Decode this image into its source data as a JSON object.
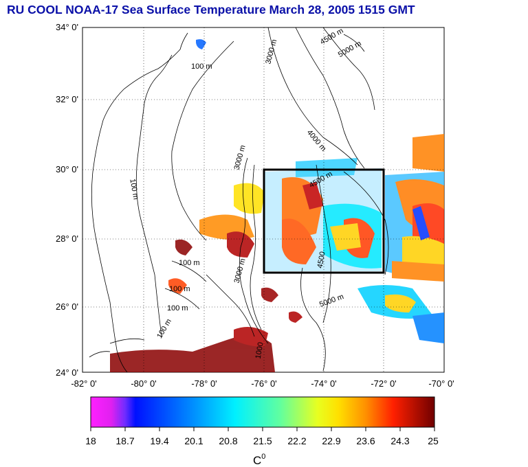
{
  "title": "RU COOL  NOAA-17 Sea Surface Temperature March 28, 2005 1515 GMT",
  "axes": {
    "lat_ticks": [
      "34° 0'",
      "32° 0'",
      "30° 0'",
      "28° 0'",
      "26° 0'",
      "24° 0'"
    ],
    "lon_ticks": [
      "-82° 0'",
      "-80° 0'",
      "-78° 0'",
      "-76° 0'",
      "-74° 0'",
      "-72° 0'",
      "-70° 0'"
    ]
  },
  "contour_labels": [
    "100 m",
    "100 m",
    "100 m",
    "100 m",
    "100 m",
    "100 m",
    "3000 m",
    "3000 m",
    "3000 m",
    "4500 m",
    "4500 m",
    "5000 m",
    "4000 m",
    "4500",
    "5000 m",
    "1000"
  ],
  "study_box": {
    "lon_min": -76,
    "lon_max": -72,
    "lat_min": 27,
    "lat_max": 30
  },
  "colorbar": {
    "ticks": [
      "18",
      "18.7",
      "19.4",
      "20.1",
      "20.8",
      "21.5",
      "22.2",
      "22.9",
      "23.6",
      "24.3",
      "25"
    ],
    "unit": "C",
    "unit_superscript": "0",
    "colors": [
      "#ff20ff",
      "#7a2cff",
      "#0018ff",
      "#0090ff",
      "#00e8ff",
      "#40ffb0",
      "#b0ff40",
      "#ffff00",
      "#ffb000",
      "#ff5000",
      "#e00000",
      "#8a0000"
    ]
  }
}
